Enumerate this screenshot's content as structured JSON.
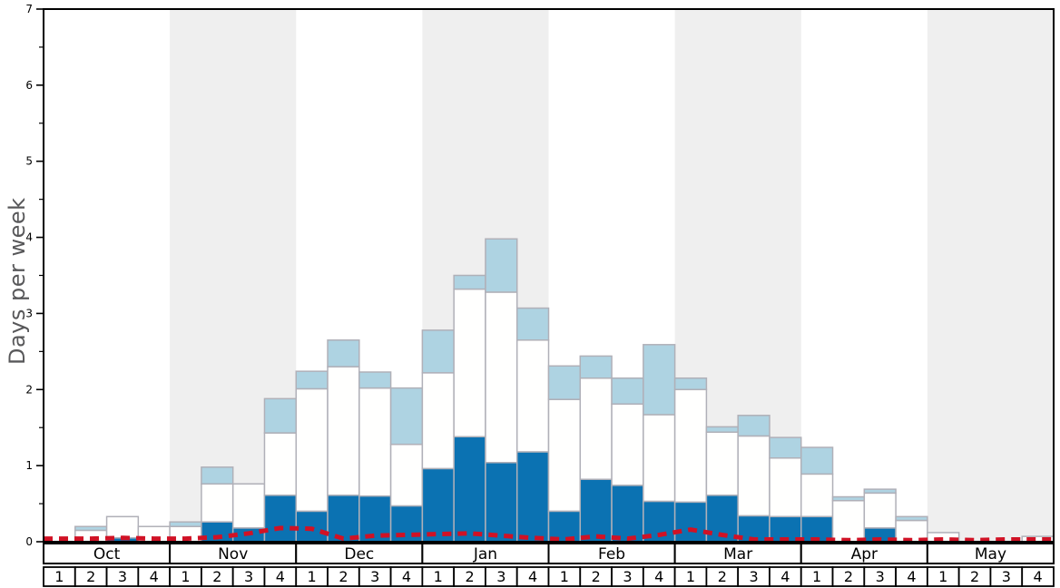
{
  "colors": {
    "dark_blue": "#0b72b2",
    "light_blue": "#aed3e2",
    "bar_white": "#fffffe",
    "bar_border": "#b0b0b8",
    "red_line": "#d01225",
    "band_grey": "#efefef",
    "axis_black": "#000000",
    "label_grey": "#58585a"
  },
  "chart_data": {
    "type": "bar",
    "subtype": "stacked-bars-with-dashed-line",
    "title": "",
    "xlabel": "",
    "ylabel": "Days per week",
    "ylim": [
      0,
      7
    ],
    "y_major_ticks": [
      "0",
      "1",
      "2",
      "3",
      "4",
      "5",
      "6",
      "7"
    ],
    "y_minor_tick_step": 0.5,
    "grid": false,
    "legend": "none",
    "months": [
      "Oct",
      "Nov",
      "Dec",
      "Jan",
      "Feb",
      "Mar",
      "Apr",
      "May"
    ],
    "week_numbers": [
      "1",
      "2",
      "3",
      "4"
    ],
    "shaded_months": [
      "Nov",
      "Jan",
      "Mar",
      "May"
    ],
    "weeks": 32,
    "series": [
      {
        "name": "dark-blue-bottom-segment-top",
        "color_key": "dark_blue",
        "values": [
          0,
          0,
          0.05,
          0,
          0,
          0.26,
          0.18,
          0.61,
          0.4,
          0.61,
          0.6,
          0.47,
          0.96,
          1.38,
          1.04,
          1.18,
          0.4,
          0.82,
          0.74,
          0.53,
          0.52,
          0.61,
          0.34,
          0.33,
          0.33,
          0,
          0.18,
          0,
          0,
          0,
          0,
          0
        ]
      },
      {
        "name": "white-middle-segment-top",
        "color_key": "bar_white",
        "values": [
          0,
          0.15,
          0.33,
          0.2,
          0.2,
          0.76,
          0.76,
          1.43,
          2.01,
          2.3,
          2.02,
          1.28,
          2.22,
          3.32,
          3.28,
          2.65,
          1.87,
          2.15,
          1.81,
          1.67,
          2.0,
          1.44,
          1.39,
          1.1,
          0.89,
          0.54,
          0.64,
          0.28,
          0.12,
          0,
          0,
          0.07
        ]
      },
      {
        "name": "light-blue-top-segment-top",
        "color_key": "light_blue",
        "values": [
          0,
          0.2,
          0.33,
          0.2,
          0.26,
          0.98,
          0.76,
          1.88,
          2.24,
          2.65,
          2.23,
          2.02,
          2.78,
          3.5,
          3.98,
          3.07,
          2.31,
          2.44,
          2.15,
          2.59,
          2.15,
          1.51,
          1.66,
          1.37,
          1.24,
          0.59,
          0.69,
          0.33,
          0.12,
          0,
          0,
          0.07
        ]
      }
    ],
    "red_dashed_line": {
      "name": "red-dashed-line",
      "color_key": "red_line",
      "values": [
        0.04,
        0.04,
        0.05,
        0.04,
        0.04,
        0.06,
        0.11,
        0.18,
        0.17,
        0.04,
        0.08,
        0.09,
        0.1,
        0.11,
        0.08,
        0.05,
        0.03,
        0.07,
        0.04,
        0.09,
        0.16,
        0.09,
        0.03,
        0.03,
        0.03,
        0.02,
        0.03,
        0.02,
        0.03,
        0.02,
        0.03,
        0.03
      ]
    }
  }
}
